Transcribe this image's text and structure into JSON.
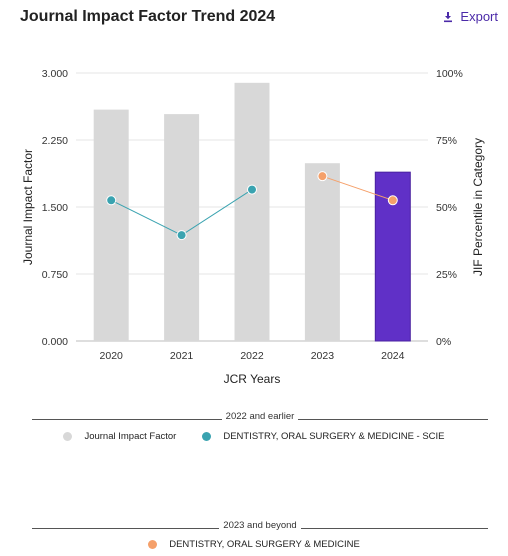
{
  "header": {
    "title": "Journal Impact Factor Trend 2024",
    "export_label": "Export"
  },
  "colors": {
    "bar": "#d8d8d8",
    "bar_highlight": "#6030c7",
    "series_scie": "#3aa3b0",
    "series_beyond": "#f5a06a",
    "grid": "#e6e6e6"
  },
  "legend": {
    "group1_title": "2022 and earlier",
    "group1_items": [
      {
        "label": "Journal Impact Factor",
        "color": "#d8d8d8"
      },
      {
        "label": "DENTISTRY, ORAL SURGERY & MEDICINE - SCIE",
        "color": "#3aa3b0"
      }
    ],
    "group2_title": "2023 and beyond",
    "group2_items": [
      {
        "label": "DENTISTRY, ORAL SURGERY & MEDICINE",
        "color": "#f5a06a"
      }
    ]
  },
  "chart_data": {
    "type": "bar",
    "categories": [
      "2020",
      "2021",
      "2022",
      "2023",
      "2024"
    ],
    "xlabel": "JCR Years",
    "ylabel": "Journal Impact Factor",
    "ylabel_right": "JIF Percentile in Category",
    "ylim": [
      0,
      3
    ],
    "yticks": [
      "0.000",
      "0.750",
      "1.500",
      "2.250",
      "3.000"
    ],
    "ylim_right": [
      0,
      100
    ],
    "yticks_right": [
      "0%",
      "25%",
      "50%",
      "75%",
      "100%"
    ],
    "grid": true,
    "series": [
      {
        "name": "Journal Impact Factor",
        "kind": "bar",
        "values": [
          2.59,
          2.54,
          2.89,
          1.99,
          1.89
        ],
        "highlight_index": 4
      },
      {
        "name": "DENTISTRY, ORAL SURGERY & MEDICINE - SCIE",
        "kind": "line",
        "axis": "right",
        "x": [
          "2020",
          "2021",
          "2022"
        ],
        "values": [
          52.5,
          39.5,
          56.5
        ]
      },
      {
        "name": "DENTISTRY, ORAL SURGERY & MEDICINE",
        "kind": "line",
        "axis": "right",
        "x": [
          "2023",
          "2024"
        ],
        "values": [
          61.5,
          52.5
        ]
      }
    ]
  }
}
